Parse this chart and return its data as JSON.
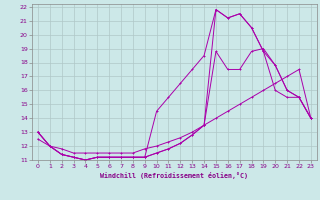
{
  "xlabel": "Windchill (Refroidissement éolien,°C)",
  "background_color": "#cce8e8",
  "grid_color": "#b0c8c8",
  "line_color": "#aa00aa",
  "xlim": [
    -0.5,
    23.5
  ],
  "ylim": [
    11,
    22.2
  ],
  "xticks": [
    0,
    1,
    2,
    3,
    4,
    5,
    6,
    7,
    8,
    9,
    10,
    11,
    12,
    13,
    14,
    15,
    16,
    17,
    18,
    19,
    20,
    21,
    22,
    23
  ],
  "yticks": [
    11,
    12,
    13,
    14,
    15,
    16,
    17,
    18,
    19,
    20,
    21,
    22
  ],
  "line1_x": [
    0,
    1,
    2,
    3,
    4,
    5,
    6,
    7,
    8,
    9,
    10,
    11,
    12,
    13,
    14,
    15,
    16,
    17,
    18,
    19,
    20,
    21,
    22,
    23
  ],
  "line1_y": [
    13.0,
    12.0,
    11.4,
    11.2,
    11.0,
    11.2,
    11.2,
    11.2,
    11.2,
    11.2,
    11.5,
    11.8,
    12.2,
    12.8,
    13.5,
    21.8,
    21.2,
    21.5,
    20.5,
    18.8,
    17.8,
    16.0,
    15.5,
    14.0
  ],
  "line2_x": [
    0,
    1,
    2,
    3,
    4,
    5,
    6,
    7,
    8,
    9,
    10,
    11,
    12,
    13,
    14,
    15,
    16,
    17,
    18,
    19,
    20,
    21,
    22,
    23
  ],
  "line2_y": [
    13.0,
    12.0,
    11.4,
    11.2,
    11.0,
    11.2,
    11.2,
    11.2,
    11.2,
    11.2,
    14.5,
    15.5,
    16.5,
    17.5,
    18.5,
    21.8,
    21.2,
    21.5,
    20.5,
    18.8,
    16.0,
    15.5,
    15.5,
    14.0
  ],
  "line3_x": [
    0,
    1,
    2,
    3,
    4,
    5,
    6,
    7,
    8,
    9,
    10,
    11,
    12,
    13,
    14,
    15,
    16,
    17,
    18,
    19,
    20,
    21,
    22,
    23
  ],
  "line3_y": [
    13.0,
    12.0,
    11.4,
    11.2,
    11.0,
    11.2,
    11.2,
    11.2,
    11.2,
    11.2,
    11.5,
    11.8,
    12.2,
    12.8,
    13.5,
    18.8,
    17.5,
    17.5,
    18.8,
    19.0,
    17.8,
    16.0,
    15.5,
    14.0
  ],
  "line4_x": [
    0,
    1,
    2,
    3,
    4,
    5,
    6,
    7,
    8,
    9,
    10,
    11,
    12,
    13,
    14,
    15,
    16,
    17,
    18,
    19,
    20,
    21,
    22,
    23
  ],
  "line4_y": [
    12.5,
    12.0,
    11.8,
    11.5,
    11.5,
    11.5,
    11.5,
    11.5,
    11.5,
    11.8,
    12.0,
    12.3,
    12.6,
    13.0,
    13.5,
    14.0,
    14.5,
    15.0,
    15.5,
    16.0,
    16.5,
    17.0,
    17.5,
    14.0
  ]
}
